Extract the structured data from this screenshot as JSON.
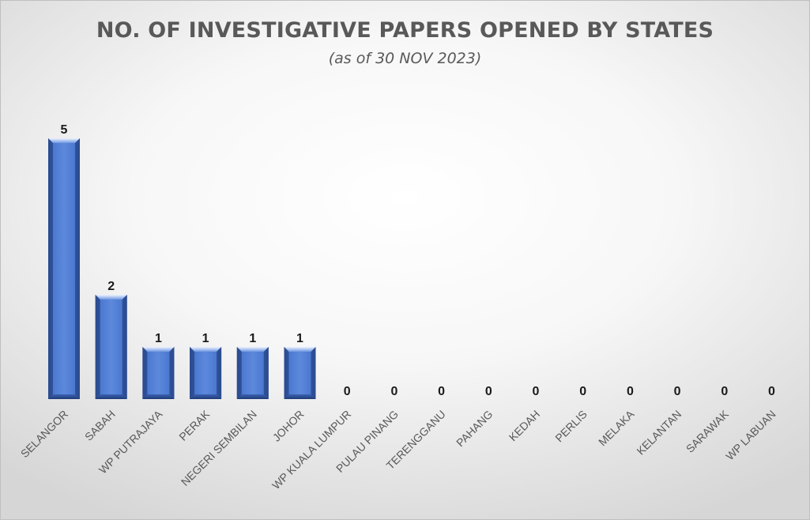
{
  "chart_data": {
    "type": "bar",
    "title": "NO. OF INVESTIGATIVE PAPERS OPENED BY STATES",
    "subtitle": "(as of 30 NOV 2023)",
    "categories": [
      "SELANGOR",
      "SABAH",
      "WP PUTRAJAYA",
      "PERAK",
      "NEGERI SEMBILAN",
      "JOHOR",
      "WP KUALA LUMPUR",
      "PULAU PINANG",
      "TERENGGANU",
      "PAHANG",
      "KEDAH",
      "PERLIS",
      "MELAKA",
      "KELANTAN",
      "SARAWAK",
      "WP LABUAN"
    ],
    "values": [
      5,
      2,
      1,
      1,
      1,
      1,
      0,
      0,
      0,
      0,
      0,
      0,
      0,
      0,
      0,
      0
    ],
    "xlabel": "",
    "ylabel": "",
    "ylim": [
      0,
      5
    ],
    "grid": false,
    "legend": "none",
    "data_labels": true,
    "bar_color": "#4472c4"
  }
}
